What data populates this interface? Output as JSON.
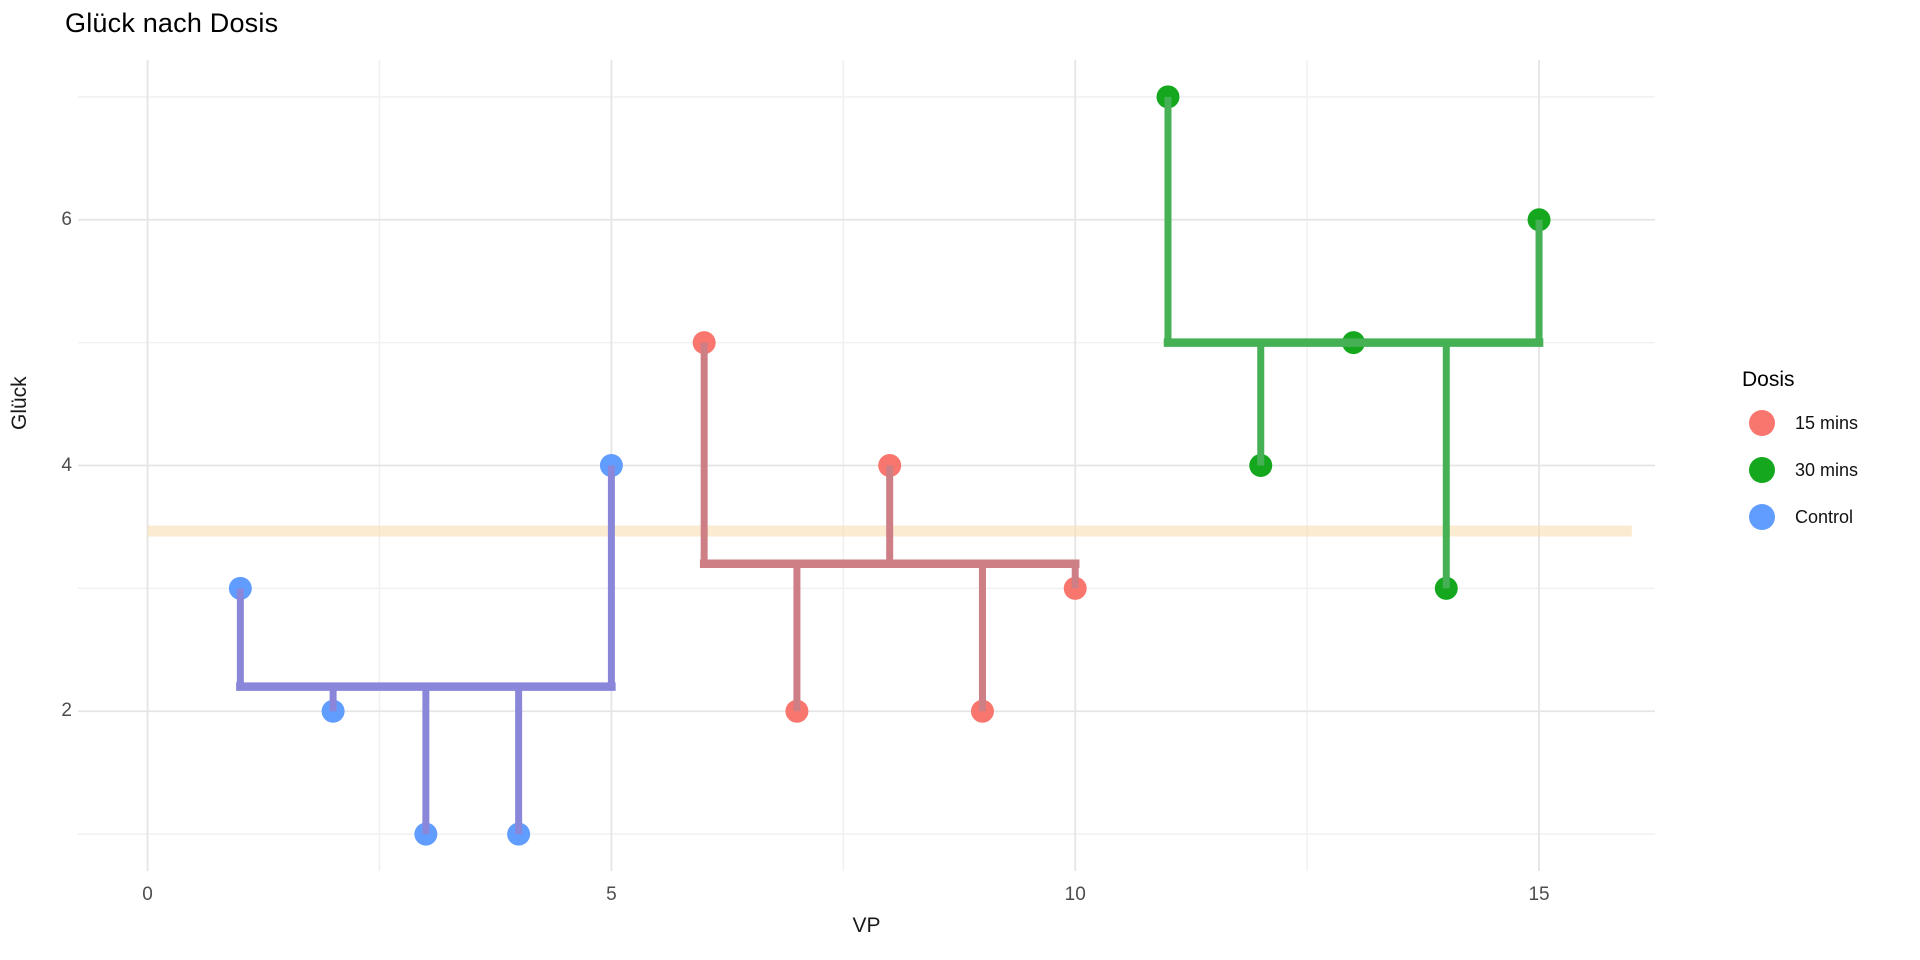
{
  "title": "Glück nach Dosis",
  "chart_data": {
    "type": "scatter",
    "title": "Glück nach Dosis",
    "xlabel": "VP",
    "ylabel": "Glück",
    "xlim": [
      -0.75,
      16.25
    ],
    "ylim": [
      0.7,
      7.3
    ],
    "x_ticks": {
      "major": [
        0,
        5,
        10,
        15
      ],
      "minor": [
        2.5,
        7.5,
        12.5
      ]
    },
    "y_ticks": {
      "major": [
        2,
        4,
        6
      ],
      "minor": [
        1,
        3,
        5,
        7
      ]
    },
    "grid": {
      "show": true,
      "major_color": "#e5e5e5",
      "minor_color": "#f1f1f1"
    },
    "grand_mean": {
      "value": 3.4667,
      "x_start": 0,
      "x_end": 16,
      "color": "rgba(246,222,178,0.6)",
      "thickness": 11
    },
    "series": [
      {
        "name": "15 mins",
        "point_color": "#F8766D",
        "line_color": "#CE7E85",
        "mean": 3.2,
        "x": [
          6,
          7,
          8,
          9,
          10
        ],
        "y": [
          5,
          2,
          4,
          2,
          3
        ]
      },
      {
        "name": "30 mins",
        "point_color": "#15A81F",
        "line_color": "#45B054",
        "mean": 5.0,
        "x": [
          11,
          12,
          13,
          14,
          15
        ],
        "y": [
          7,
          4,
          5,
          3,
          6
        ]
      },
      {
        "name": "Control",
        "point_color": "#619CFF",
        "line_color": "#8A87DB",
        "mean": 2.2,
        "x": [
          1,
          2,
          3,
          4,
          5
        ],
        "y": [
          3,
          2,
          1,
          1,
          4
        ]
      }
    ],
    "legend": {
      "title": "Dosis",
      "position": "right"
    }
  }
}
